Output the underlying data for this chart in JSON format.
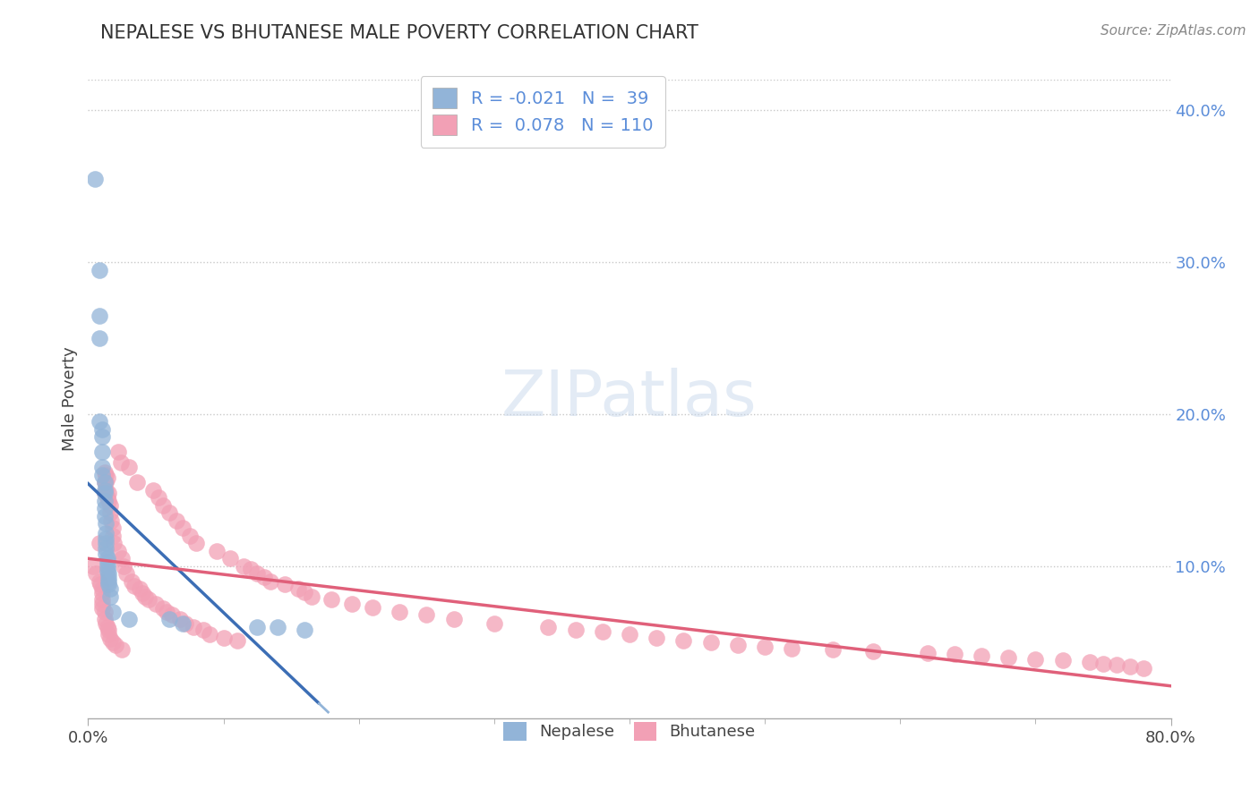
{
  "title": "NEPALESE VS BHUTANESE MALE POVERTY CORRELATION CHART",
  "source": "Source: ZipAtlas.com",
  "ylabel": "Male Poverty",
  "xlim": [
    0.0,
    0.8
  ],
  "ylim": [
    0.0,
    0.42
  ],
  "ytick_vals": [
    0.1,
    0.2,
    0.3,
    0.4
  ],
  "ytick_labels": [
    "10.0%",
    "20.0%",
    "30.0%",
    "40.0%"
  ],
  "xtick_vals": [
    0.0,
    0.8
  ],
  "xtick_labels": [
    "0.0%",
    "80.0%"
  ],
  "grid_color": "#c8c8c8",
  "background_color": "#ffffff",
  "nepalese_color": "#92b4d8",
  "bhutanese_color": "#f2a0b5",
  "nepalese_line_color": "#3c6eb5",
  "bhutanese_line_color": "#e0607a",
  "dashed_line_color": "#92b4d8",
  "watermark": "ZIPatlas",
  "nepalese_x": [
    0.005,
    0.008,
    0.008,
    0.008,
    0.008,
    0.01,
    0.01,
    0.01,
    0.01,
    0.01,
    0.012,
    0.012,
    0.012,
    0.012,
    0.012,
    0.012,
    0.013,
    0.013,
    0.013,
    0.013,
    0.013,
    0.013,
    0.014,
    0.014,
    0.014,
    0.014,
    0.015,
    0.015,
    0.015,
    0.015,
    0.016,
    0.016,
    0.018,
    0.03,
    0.06,
    0.07,
    0.125,
    0.14,
    0.16
  ],
  "nepalese_y": [
    0.355,
    0.295,
    0.265,
    0.25,
    0.195,
    0.19,
    0.185,
    0.175,
    0.165,
    0.16,
    0.155,
    0.15,
    0.148,
    0.143,
    0.138,
    0.133,
    0.128,
    0.122,
    0.118,
    0.115,
    0.112,
    0.108,
    0.105,
    0.103,
    0.1,
    0.097,
    0.095,
    0.092,
    0.09,
    0.088,
    0.085,
    0.08,
    0.07,
    0.065,
    0.065,
    0.062,
    0.06,
    0.06,
    0.058
  ],
  "bhutanese_x": [
    0.004,
    0.006,
    0.008,
    0.008,
    0.009,
    0.01,
    0.01,
    0.01,
    0.01,
    0.01,
    0.012,
    0.012,
    0.012,
    0.012,
    0.012,
    0.013,
    0.013,
    0.013,
    0.013,
    0.014,
    0.014,
    0.014,
    0.015,
    0.015,
    0.015,
    0.015,
    0.016,
    0.016,
    0.016,
    0.017,
    0.018,
    0.018,
    0.018,
    0.019,
    0.02,
    0.022,
    0.022,
    0.024,
    0.025,
    0.025,
    0.026,
    0.028,
    0.03,
    0.032,
    0.034,
    0.036,
    0.038,
    0.04,
    0.042,
    0.045,
    0.048,
    0.05,
    0.052,
    0.055,
    0.055,
    0.058,
    0.06,
    0.062,
    0.065,
    0.068,
    0.07,
    0.072,
    0.075,
    0.078,
    0.08,
    0.085,
    0.09,
    0.095,
    0.1,
    0.105,
    0.11,
    0.115,
    0.12,
    0.125,
    0.13,
    0.135,
    0.145,
    0.155,
    0.16,
    0.165,
    0.18,
    0.195,
    0.21,
    0.23,
    0.25,
    0.27,
    0.3,
    0.34,
    0.36,
    0.38,
    0.4,
    0.42,
    0.44,
    0.46,
    0.48,
    0.5,
    0.52,
    0.55,
    0.58,
    0.62,
    0.64,
    0.66,
    0.68,
    0.7,
    0.72,
    0.74,
    0.75,
    0.76,
    0.77,
    0.78
  ],
  "bhutanese_y": [
    0.1,
    0.095,
    0.115,
    0.09,
    0.088,
    0.085,
    0.082,
    0.078,
    0.075,
    0.072,
    0.162,
    0.155,
    0.148,
    0.07,
    0.065,
    0.16,
    0.155,
    0.15,
    0.062,
    0.158,
    0.145,
    0.06,
    0.148,
    0.143,
    0.058,
    0.055,
    0.14,
    0.135,
    0.052,
    0.13,
    0.125,
    0.12,
    0.05,
    0.115,
    0.048,
    0.175,
    0.11,
    0.168,
    0.105,
    0.045,
    0.1,
    0.095,
    0.165,
    0.09,
    0.087,
    0.155,
    0.085,
    0.082,
    0.08,
    0.078,
    0.15,
    0.075,
    0.145,
    0.072,
    0.14,
    0.07,
    0.135,
    0.068,
    0.13,
    0.065,
    0.125,
    0.062,
    0.12,
    0.06,
    0.115,
    0.058,
    0.055,
    0.11,
    0.053,
    0.105,
    0.051,
    0.1,
    0.098,
    0.095,
    0.093,
    0.09,
    0.088,
    0.085,
    0.083,
    0.08,
    0.078,
    0.075,
    0.073,
    0.07,
    0.068,
    0.065,
    0.062,
    0.06,
    0.058,
    0.057,
    0.055,
    0.053,
    0.051,
    0.05,
    0.048,
    0.047,
    0.046,
    0.045,
    0.044,
    0.043,
    0.042,
    0.041,
    0.04,
    0.039,
    0.038,
    0.037,
    0.036,
    0.035,
    0.034,
    0.033
  ]
}
